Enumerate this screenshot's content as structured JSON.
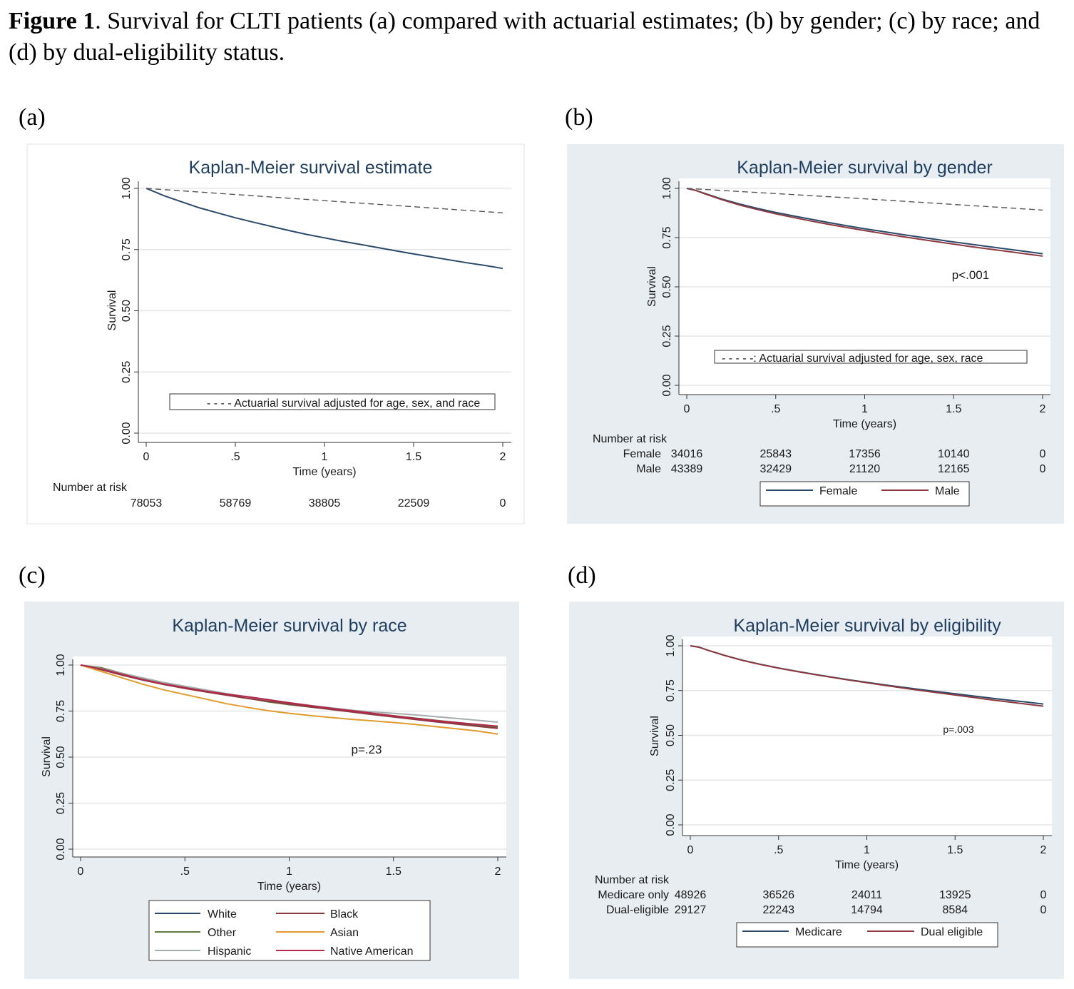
{
  "caption": {
    "bold": "Figure 1",
    "text": ". Survival for CLTI patients (a) compared with actuarial estimates; (b) by gender; (c) by race; and (d) by dual-eligibility status."
  },
  "panel_labels": [
    "(a)",
    "(b)",
    "(c)",
    "(d)"
  ],
  "colors": {
    "navy": "#2b4a6b",
    "maroon": "#8c3a3f",
    "olive": "#5e7a3c",
    "orange": "#e09a2e",
    "gray": "#a4afad",
    "crimson": "#b5284e",
    "dashed": "#555555",
    "panel_bg": "#e8edf1"
  },
  "chart_data": [
    {
      "type": "line",
      "title": "Kaplan-Meier survival estimate",
      "xlabel": "Time (years)",
      "ylabel": "Survival",
      "xlim": [
        0,
        2
      ],
      "ylim": [
        0,
        1
      ],
      "x_ticks": [
        0,
        0.5,
        1,
        1.5,
        2
      ],
      "x_tick_labels": [
        "0",
        ".5",
        "1",
        "1.5",
        "2"
      ],
      "y_ticks": [
        0,
        0.25,
        0.5,
        0.75,
        1
      ],
      "y_tick_labels": [
        "0.00",
        "0.25",
        "0.50",
        "0.75",
        "1.00"
      ],
      "grid": true,
      "series": [
        {
          "color": "navy",
          "dash": false,
          "x": [
            0,
            0.05,
            0.1,
            0.2,
            0.3,
            0.4,
            0.5,
            0.6,
            0.7,
            0.8,
            0.9,
            1.0,
            1.1,
            1.2,
            1.3,
            1.4,
            1.5,
            1.6,
            1.7,
            1.8,
            1.9,
            2.0
          ],
          "y": [
            1.0,
            0.985,
            0.97,
            0.945,
            0.92,
            0.9,
            0.88,
            0.862,
            0.845,
            0.828,
            0.812,
            0.798,
            0.784,
            0.771,
            0.758,
            0.745,
            0.732,
            0.72,
            0.708,
            0.696,
            0.685,
            0.673
          ]
        },
        {
          "color": "dashed",
          "dash": true,
          "x": [
            0,
            1,
            2
          ],
          "y": [
            1.0,
            0.95,
            0.9
          ]
        }
      ],
      "annotation_box": "- - - - Actuarial survival adjusted for age, sex, and race",
      "risk_table": {
        "title": "Number at risk",
        "rows": [
          {
            "label": "",
            "values": [
              "78053",
              "58769",
              "38805",
              "22509",
              "0"
            ]
          }
        ]
      }
    },
    {
      "type": "line",
      "title": "Kaplan-Meier survival by gender",
      "xlabel": "Time (years)",
      "ylabel": "Survival",
      "xlim": [
        0,
        2
      ],
      "ylim": [
        0,
        1
      ],
      "x_ticks": [
        0,
        0.5,
        1,
        1.5,
        2
      ],
      "x_tick_labels": [
        "0",
        ".5",
        "1",
        "1.5",
        "2"
      ],
      "y_ticks": [
        0,
        0.25,
        0.5,
        0.75,
        1
      ],
      "y_tick_labels": [
        "0.00",
        "0.25",
        "0.50",
        "0.75",
        "1.00"
      ],
      "grid": true,
      "series": [
        {
          "name": "Female",
          "color": "navy",
          "dash": false,
          "x": [
            0,
            0.05,
            0.1,
            0.2,
            0.3,
            0.4,
            0.5,
            0.6,
            0.7,
            0.8,
            0.9,
            1.0,
            1.1,
            1.2,
            1.3,
            1.4,
            1.5,
            1.6,
            1.7,
            1.8,
            1.9,
            2.0
          ],
          "y": [
            1.0,
            0.99,
            0.975,
            0.945,
            0.92,
            0.898,
            0.878,
            0.86,
            0.843,
            0.826,
            0.81,
            0.795,
            0.781,
            0.767,
            0.754,
            0.741,
            0.728,
            0.716,
            0.704,
            0.692,
            0.68,
            0.668
          ]
        },
        {
          "name": "Male",
          "color": "maroon",
          "dash": false,
          "x": [
            0,
            0.05,
            0.1,
            0.2,
            0.3,
            0.4,
            0.5,
            0.6,
            0.7,
            0.8,
            0.9,
            1.0,
            1.1,
            1.2,
            1.3,
            1.4,
            1.5,
            1.6,
            1.7,
            1.8,
            1.9,
            2.0
          ],
          "y": [
            1.0,
            0.99,
            0.973,
            0.942,
            0.915,
            0.892,
            0.871,
            0.852,
            0.834,
            0.817,
            0.801,
            0.786,
            0.771,
            0.757,
            0.743,
            0.73,
            0.717,
            0.704,
            0.692,
            0.68,
            0.668,
            0.656
          ]
        },
        {
          "color": "dashed",
          "dash": true,
          "x": [
            0,
            1,
            2
          ],
          "y": [
            1.0,
            0.947,
            0.89
          ]
        }
      ],
      "pvalue": "p<.001",
      "annotation_box": "- - - - -:  Actuarial survival adjusted for age, sex, race",
      "risk_table": {
        "title": "Number at risk",
        "rows": [
          {
            "label": "Female",
            "values": [
              "34016",
              "25843",
              "17356",
              "10140",
              "0"
            ]
          },
          {
            "label": "Male",
            "values": [
              "43389",
              "32429",
              "21120",
              "12165",
              "0"
            ]
          }
        ]
      },
      "legend": [
        {
          "label": "Female",
          "color": "navy"
        },
        {
          "label": "Male",
          "color": "maroon"
        }
      ]
    },
    {
      "type": "line",
      "title": "Kaplan-Meier survival by race",
      "xlabel": "Time (years)",
      "ylabel": "Survival",
      "xlim": [
        0,
        2
      ],
      "ylim": [
        0,
        1
      ],
      "x_ticks": [
        0,
        0.5,
        1,
        1.5,
        2
      ],
      "x_tick_labels": [
        "0",
        ".5",
        "1",
        "1.5",
        "2"
      ],
      "y_ticks": [
        0,
        0.25,
        0.5,
        0.75,
        1
      ],
      "y_tick_labels": [
        "0.00",
        "0.25",
        "0.50",
        "0.75",
        "1.00"
      ],
      "grid": true,
      "series": [
        {
          "name": "White",
          "color": "navy",
          "dash": false,
          "x": [
            0,
            0.1,
            0.2,
            0.3,
            0.4,
            0.5,
            0.6,
            0.7,
            0.8,
            0.9,
            1.0,
            1.1,
            1.2,
            1.3,
            1.4,
            1.5,
            1.6,
            1.7,
            1.8,
            1.9,
            2.0
          ],
          "y": [
            1.0,
            0.975,
            0.945,
            0.918,
            0.895,
            0.875,
            0.857,
            0.84,
            0.823,
            0.807,
            0.792,
            0.778,
            0.764,
            0.75,
            0.737,
            0.724,
            0.711,
            0.698,
            0.686,
            0.674,
            0.662
          ]
        },
        {
          "name": "Other",
          "color": "olive",
          "dash": false,
          "x": [
            0,
            0.1,
            0.2,
            0.3,
            0.4,
            0.5,
            0.6,
            0.7,
            0.8,
            0.9,
            1.0,
            1.1,
            1.2,
            1.3,
            1.4,
            1.5,
            1.6,
            1.7,
            1.8,
            1.9,
            2.0
          ],
          "y": [
            1.0,
            0.985,
            0.955,
            0.925,
            0.9,
            0.88,
            0.86,
            0.84,
            0.82,
            0.8,
            0.785,
            0.772,
            0.76,
            0.748,
            0.735,
            0.725,
            0.712,
            0.7,
            0.688,
            0.676,
            0.66
          ]
        },
        {
          "name": "Hispanic",
          "color": "gray",
          "dash": false,
          "x": [
            0,
            0.1,
            0.2,
            0.3,
            0.4,
            0.5,
            0.6,
            0.7,
            0.8,
            0.9,
            1.0,
            1.1,
            1.2,
            1.3,
            1.4,
            1.5,
            1.6,
            1.7,
            1.8,
            1.9,
            2.0
          ],
          "y": [
            1.0,
            0.98,
            0.955,
            0.93,
            0.905,
            0.885,
            0.865,
            0.845,
            0.825,
            0.81,
            0.795,
            0.78,
            0.768,
            0.755,
            0.745,
            0.738,
            0.73,
            0.72,
            0.71,
            0.7,
            0.69
          ]
        },
        {
          "name": "Black",
          "color": "maroon",
          "dash": false,
          "x": [
            0,
            0.1,
            0.2,
            0.3,
            0.4,
            0.5,
            0.6,
            0.7,
            0.8,
            0.9,
            1.0,
            1.1,
            1.2,
            1.3,
            1.4,
            1.5,
            1.6,
            1.7,
            1.8,
            1.9,
            2.0
          ],
          "y": [
            1.0,
            0.975,
            0.945,
            0.918,
            0.894,
            0.873,
            0.854,
            0.836,
            0.819,
            0.803,
            0.788,
            0.773,
            0.759,
            0.745,
            0.731,
            0.718,
            0.705,
            0.692,
            0.68,
            0.668,
            0.656
          ]
        },
        {
          "name": "Asian",
          "color": "orange",
          "dash": false,
          "x": [
            0,
            0.1,
            0.2,
            0.3,
            0.4,
            0.5,
            0.6,
            0.7,
            0.8,
            0.9,
            1.0,
            1.1,
            1.2,
            1.3,
            1.4,
            1.5,
            1.6,
            1.7,
            1.8,
            1.9,
            2.0
          ],
          "y": [
            1.0,
            0.965,
            0.93,
            0.895,
            0.865,
            0.84,
            0.815,
            0.79,
            0.77,
            0.752,
            0.738,
            0.726,
            0.715,
            0.705,
            0.697,
            0.688,
            0.678,
            0.666,
            0.654,
            0.642,
            0.625
          ]
        },
        {
          "name": "Native American",
          "color": "crimson",
          "dash": false,
          "x": [
            0,
            0.1,
            0.2,
            0.3,
            0.4,
            0.5,
            0.6,
            0.7,
            0.8,
            0.9,
            1.0,
            1.1,
            1.2,
            1.3,
            1.4,
            1.5,
            1.6,
            1.7,
            1.8,
            1.9,
            2.0
          ],
          "y": [
            1.0,
            0.978,
            0.95,
            0.92,
            0.897,
            0.877,
            0.858,
            0.842,
            0.828,
            0.812,
            0.795,
            0.78,
            0.765,
            0.752,
            0.738,
            0.724,
            0.71,
            0.698,
            0.688,
            0.678,
            0.668
          ]
        }
      ],
      "pvalue": "p=.23",
      "legend": [
        {
          "label": "White",
          "color": "navy"
        },
        {
          "label": "Black",
          "color": "maroon"
        },
        {
          "label": "Other",
          "color": "olive"
        },
        {
          "label": "Asian",
          "color": "orange"
        },
        {
          "label": "Hispanic",
          "color": "gray"
        },
        {
          "label": "Native American",
          "color": "crimson"
        }
      ]
    },
    {
      "type": "line",
      "title": "Kaplan-Meier survival by eligibility",
      "xlabel": "Time (years)",
      "ylabel": "Survival",
      "xlim": [
        0,
        2
      ],
      "ylim": [
        0,
        1
      ],
      "x_ticks": [
        0,
        0.5,
        1,
        1.5,
        2
      ],
      "x_tick_labels": [
        "0",
        ".5",
        "1",
        "1.5",
        "2"
      ],
      "y_ticks": [
        0,
        0.25,
        0.5,
        0.75,
        1
      ],
      "y_tick_labels": [
        "0.00",
        "0.25",
        "0.50",
        "0.75",
        "1.00"
      ],
      "grid": true,
      "series": [
        {
          "name": "Medicare",
          "color": "navy",
          "dash": false,
          "x": [
            0,
            0.05,
            0.1,
            0.2,
            0.3,
            0.4,
            0.5,
            0.6,
            0.7,
            0.8,
            0.9,
            1.0,
            1.1,
            1.2,
            1.3,
            1.4,
            1.5,
            1.6,
            1.7,
            1.8,
            1.9,
            2.0
          ],
          "y": [
            1.0,
            0.992,
            0.975,
            0.945,
            0.918,
            0.896,
            0.876,
            0.858,
            0.841,
            0.825,
            0.81,
            0.796,
            0.782,
            0.769,
            0.756,
            0.744,
            0.732,
            0.72,
            0.708,
            0.697,
            0.686,
            0.675
          ]
        },
        {
          "name": "Dual eligible",
          "color": "maroon",
          "dash": false,
          "x": [
            0,
            0.05,
            0.1,
            0.2,
            0.3,
            0.4,
            0.5,
            0.6,
            0.7,
            0.8,
            0.9,
            1.0,
            1.1,
            1.2,
            1.3,
            1.4,
            1.5,
            1.6,
            1.7,
            1.8,
            1.9,
            2.0
          ],
          "y": [
            1.0,
            0.992,
            0.975,
            0.944,
            0.917,
            0.895,
            0.875,
            0.857,
            0.84,
            0.824,
            0.808,
            0.794,
            0.779,
            0.765,
            0.751,
            0.738,
            0.725,
            0.712,
            0.699,
            0.687,
            0.675,
            0.663
          ]
        }
      ],
      "pvalue": "p=.003",
      "risk_table": {
        "title": "Number at risk",
        "rows": [
          {
            "label": "Medicare only",
            "values": [
              "48926",
              "36526",
              "24011",
              "13925",
              "0"
            ]
          },
          {
            "label": "Dual-eligible",
            "values": [
              "29127",
              "22243",
              "14794",
              "8584",
              "0"
            ]
          }
        ]
      },
      "legend": [
        {
          "label": "Medicare",
          "color": "navy"
        },
        {
          "label": "Dual eligible",
          "color": "maroon"
        }
      ]
    }
  ]
}
